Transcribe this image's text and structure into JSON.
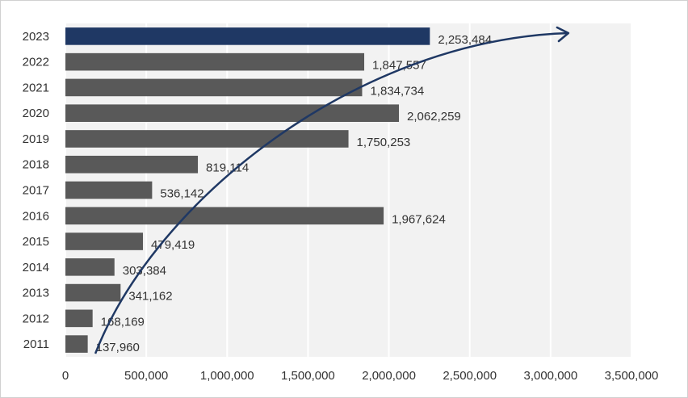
{
  "chart_data": {
    "type": "bar",
    "orientation": "horizontal",
    "title": "",
    "xlabel": "",
    "ylabel": "",
    "categories": [
      "2023",
      "2022",
      "2021",
      "2020",
      "2019",
      "2018",
      "2017",
      "2016",
      "2015",
      "2014",
      "2013",
      "2012",
      "2011"
    ],
    "values": [
      2253484,
      1847557,
      1834734,
      2062259,
      1750253,
      819114,
      536142,
      1967624,
      479419,
      303384,
      341162,
      168169,
      137960
    ],
    "value_labels": [
      "2,253,484",
      "1,847,557",
      "1,834,734",
      "2,062,259",
      "1,750,253",
      "819,114",
      "536,142",
      "1,967,624",
      "479,419",
      "303,384",
      "341,162",
      "168,169",
      "137,960"
    ],
    "xlim": [
      0,
      3500000
    ],
    "x_ticks": [
      0,
      500000,
      1000000,
      1500000,
      2000000,
      2500000,
      3000000,
      3500000
    ],
    "x_tick_labels": [
      "0",
      "500,000",
      "1,000,000",
      "1,500,000",
      "2,000,000",
      "2,500,000",
      "3,000,000",
      "3,500,000"
    ],
    "highlight_category": "2023",
    "grid": true,
    "annotation": "trend-arrow",
    "colors": {
      "bar": "#595959",
      "highlight": "#1f3864",
      "band_light": "#f2f2f2",
      "gridline": "#ffffff",
      "arrow": "#1f3864"
    }
  }
}
